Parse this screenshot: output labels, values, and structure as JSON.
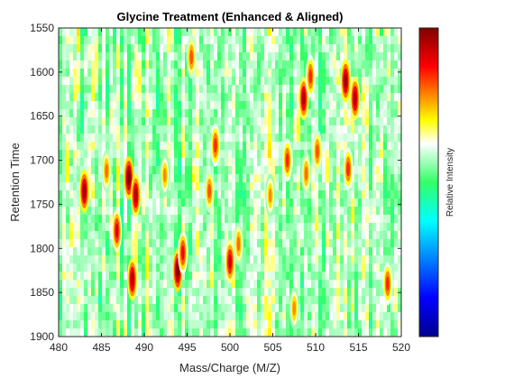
{
  "chart_data": {
    "type": "heatmap",
    "title": "Glycine Treatment (Enhanced & Aligned)",
    "xlabel": "Mass/Charge (M/Z)",
    "ylabel": "Retention Time",
    "colorbar_label": "Relative Intensity",
    "xlim": [
      480,
      520
    ],
    "ylim": [
      1550,
      1900
    ],
    "y_reversed": true,
    "colormap": "jet",
    "grid": false,
    "x_ticks": [
      "480",
      "485",
      "490",
      "495",
      "500",
      "505",
      "510",
      "515",
      "520"
    ],
    "y_ticks": [
      "1550",
      "1600",
      "1650",
      "1700",
      "1750",
      "1800",
      "1850",
      "1900"
    ],
    "background_intensity": [
      0.45,
      0.7
    ],
    "peaks": [
      {
        "mz": 483.0,
        "rt": 1735,
        "intensity": 0.97
      },
      {
        "mz": 488.2,
        "rt": 1720,
        "intensity": 1.0
      },
      {
        "mz": 489.0,
        "rt": 1740,
        "intensity": 0.95
      },
      {
        "mz": 486.8,
        "rt": 1780,
        "intensity": 0.9
      },
      {
        "mz": 488.6,
        "rt": 1835,
        "intensity": 0.95
      },
      {
        "mz": 493.9,
        "rt": 1825,
        "intensity": 1.0
      },
      {
        "mz": 494.5,
        "rt": 1805,
        "intensity": 0.88
      },
      {
        "mz": 497.6,
        "rt": 1735,
        "intensity": 0.82
      },
      {
        "mz": 498.3,
        "rt": 1683,
        "intensity": 0.85
      },
      {
        "mz": 500.0,
        "rt": 1815,
        "intensity": 0.92
      },
      {
        "mz": 501.0,
        "rt": 1795,
        "intensity": 0.8
      },
      {
        "mz": 504.7,
        "rt": 1740,
        "intensity": 0.78
      },
      {
        "mz": 506.7,
        "rt": 1700,
        "intensity": 0.85
      },
      {
        "mz": 508.6,
        "rt": 1630,
        "intensity": 0.95
      },
      {
        "mz": 508.9,
        "rt": 1715,
        "intensity": 0.8
      },
      {
        "mz": 509.4,
        "rt": 1605,
        "intensity": 0.85
      },
      {
        "mz": 510.2,
        "rt": 1690,
        "intensity": 0.82
      },
      {
        "mz": 513.5,
        "rt": 1610,
        "intensity": 0.97
      },
      {
        "mz": 514.6,
        "rt": 1630,
        "intensity": 0.95
      },
      {
        "mz": 513.8,
        "rt": 1710,
        "intensity": 0.85
      },
      {
        "mz": 507.5,
        "rt": 1868,
        "intensity": 0.78
      },
      {
        "mz": 518.4,
        "rt": 1840,
        "intensity": 0.85
      },
      {
        "mz": 495.5,
        "rt": 1583,
        "intensity": 0.82
      },
      {
        "mz": 485.6,
        "rt": 1712,
        "intensity": 0.8
      },
      {
        "mz": 492.4,
        "rt": 1717,
        "intensity": 0.78
      }
    ]
  }
}
